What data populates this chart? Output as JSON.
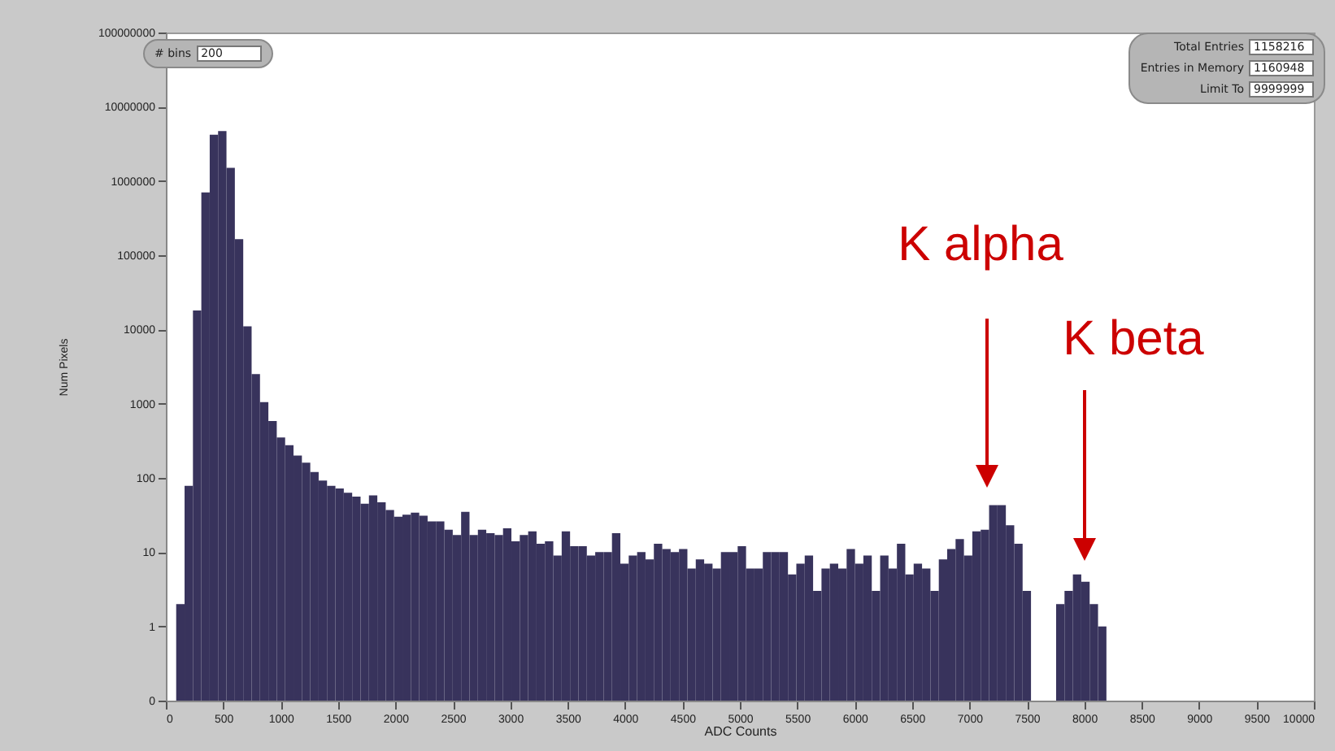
{
  "chart_data": {
    "type": "histogram",
    "xlabel": "ADC Counts",
    "ylabel": "Num Pixels",
    "bins": [
      90,
      163,
      236,
      309,
      382,
      455,
      528,
      601,
      674,
      747,
      820,
      893,
      966,
      1039,
      1112,
      1185,
      1258,
      1331,
      1404,
      1477,
      1550,
      1623,
      1696,
      1769,
      1842,
      1915,
      1988,
      2061,
      2134,
      2207,
      2280,
      2353,
      2426,
      2499,
      2572,
      2645,
      2718,
      2791,
      2864,
      2937,
      3010,
      3083,
      3156,
      3229,
      3302,
      3375,
      3448,
      3521,
      3594,
      3667,
      3740,
      3813,
      3886,
      3959,
      4032,
      4105,
      4178,
      4251,
      4324,
      4397,
      4470,
      4543,
      4616,
      4689,
      4762,
      4835,
      4908,
      4981,
      5054,
      5127,
      5200,
      5273,
      5346,
      5419,
      5492,
      5565,
      5638,
      5711,
      5784,
      5857,
      5930,
      6003,
      6076,
      6149,
      6222,
      6295,
      6368,
      6441,
      6514,
      6587,
      6660,
      6733,
      6806,
      6879,
      6952,
      7025,
      7098,
      7171,
      7244,
      7317,
      7390,
      7463,
      7536,
      7609,
      7682,
      7755,
      7828,
      7901,
      7974,
      8047,
      8120,
      8193
    ],
    "values": [
      2,
      78,
      18000,
      700000,
      4200000,
      4700000,
      1500000,
      165000,
      11000,
      2500,
      1050,
      585,
      350,
      275,
      200,
      160,
      120,
      92,
      78,
      72,
      63,
      56,
      45,
      58,
      47,
      37,
      30,
      32,
      34,
      31,
      26,
      26,
      20,
      17,
      35,
      17,
      20,
      18,
      17,
      21,
      14,
      17,
      19,
      13,
      14,
      9,
      19,
      12,
      12,
      9,
      10,
      10,
      18,
      7,
      9,
      10,
      8,
      13,
      11,
      10,
      11,
      6,
      8,
      7,
      6,
      10,
      10,
      12,
      6,
      6,
      10,
      10,
      10,
      5,
      7,
      9,
      3,
      6,
      7,
      6,
      11,
      7,
      9,
      3,
      9,
      6,
      13,
      5,
      7,
      6,
      3,
      8,
      11,
      15,
      9,
      19,
      20,
      43,
      43,
      23,
      13,
      3,
      null,
      null,
      null,
      2,
      3,
      5,
      4,
      2,
      1
    ],
    "color": "#38335c",
    "log": "y",
    "xlim": [
      0,
      10000
    ],
    "xticks": [
      0,
      500,
      1000,
      1500,
      2000,
      2500,
      3000,
      3500,
      4000,
      4500,
      5000,
      5500,
      6000,
      6500,
      7000,
      7500,
      8000,
      8500,
      9000,
      9500,
      10000
    ],
    "ylim": [
      0.1,
      100000000
    ],
    "yticks": [
      {
        "value": 0.1,
        "label": "0"
      },
      1,
      10,
      100,
      1000,
      10000,
      100000,
      1000000,
      10000000,
      100000000
    ],
    "grid": false,
    "annotations": [
      "K alpha",
      "K beta",
      "# bins",
      "200",
      "Total Entries",
      "1158216",
      "Entries in Memory",
      "1160948",
      "Limit To",
      "9999999"
    ]
  }
}
